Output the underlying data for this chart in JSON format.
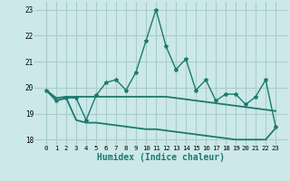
{
  "xlabel": "Humidex (Indice chaleur)",
  "x": [
    0,
    1,
    2,
    3,
    4,
    5,
    6,
    7,
    8,
    9,
    10,
    11,
    12,
    13,
    14,
    15,
    16,
    17,
    18,
    19,
    20,
    21,
    22,
    23
  ],
  "y_main": [
    19.9,
    19.5,
    19.6,
    19.6,
    18.75,
    19.7,
    20.2,
    20.3,
    19.9,
    20.6,
    21.8,
    23.0,
    21.6,
    20.7,
    21.1,
    19.9,
    20.3,
    19.5,
    19.75,
    19.75,
    19.35,
    19.65,
    20.3,
    18.5
  ],
  "y_upper": [
    19.9,
    19.6,
    19.65,
    19.65,
    19.65,
    19.65,
    19.65,
    19.65,
    19.65,
    19.65,
    19.65,
    19.65,
    19.65,
    19.6,
    19.55,
    19.5,
    19.45,
    19.4,
    19.35,
    19.3,
    19.25,
    19.2,
    19.15,
    19.1
  ],
  "y_lower": [
    19.9,
    19.5,
    19.6,
    18.75,
    18.65,
    18.65,
    18.6,
    18.55,
    18.5,
    18.45,
    18.4,
    18.4,
    18.35,
    18.3,
    18.25,
    18.2,
    18.15,
    18.1,
    18.05,
    18.0,
    18.0,
    18.0,
    18.0,
    18.45
  ],
  "line_color": "#1a7a6e",
  "bg_color": "#cce8e8",
  "grid_color": "#aacccc",
  "ylim": [
    17.8,
    23.3
  ],
  "yticks": [
    18,
    19,
    20,
    21,
    22,
    23
  ]
}
